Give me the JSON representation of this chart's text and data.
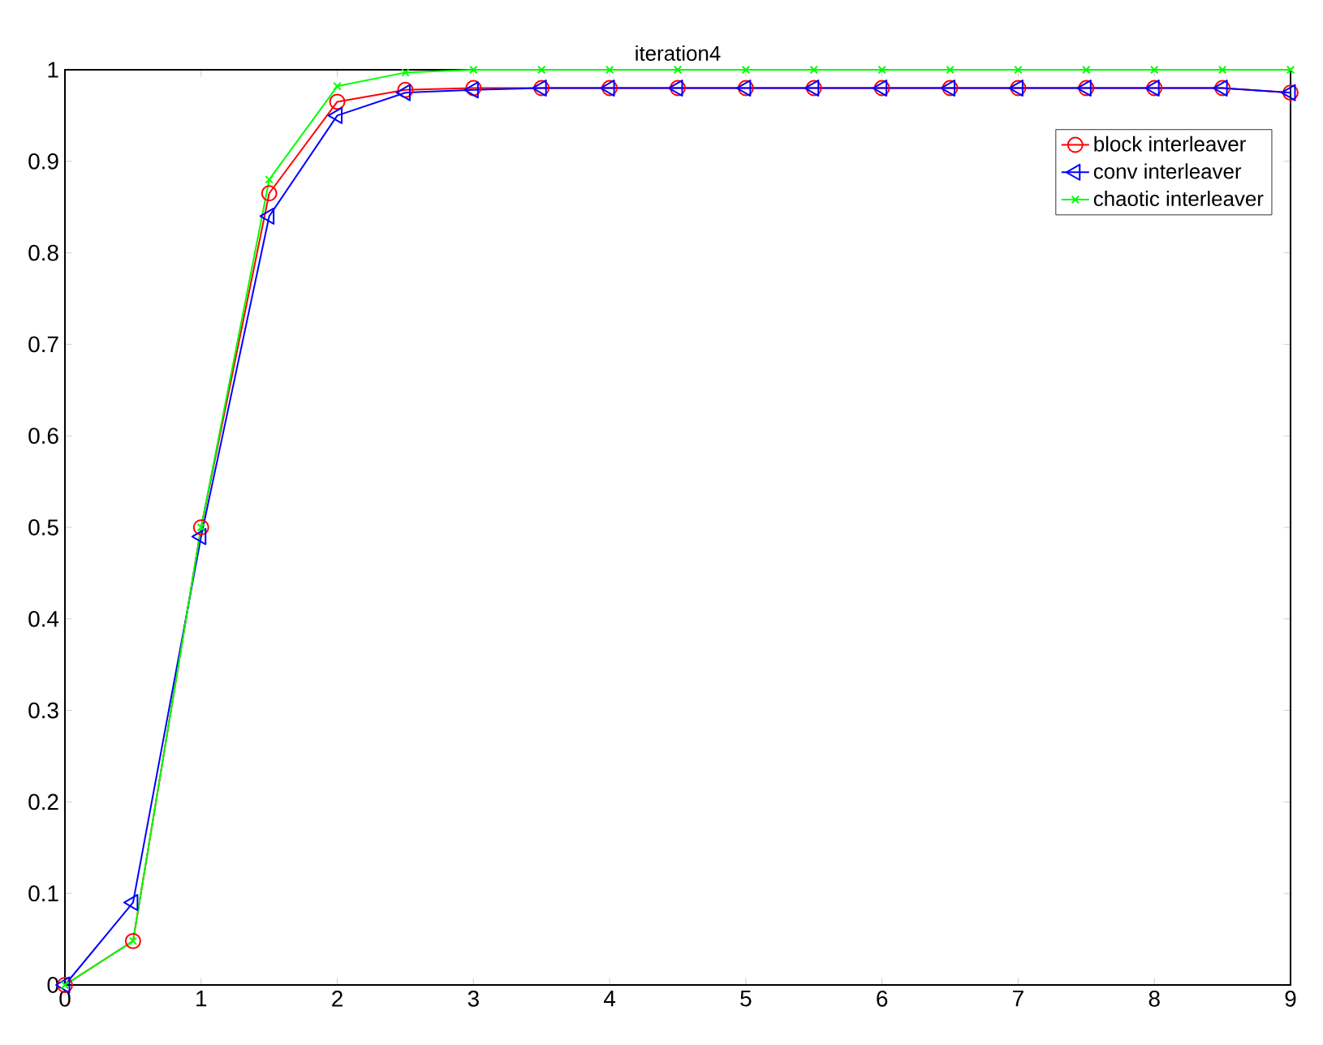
{
  "chart_data": {
    "type": "line",
    "title": "iteration4",
    "x": [
      0,
      0.5,
      1,
      1.5,
      2,
      2.5,
      3,
      3.5,
      4,
      4.5,
      5,
      5.5,
      6,
      6.5,
      7,
      7.5,
      8,
      8.5,
      9
    ],
    "series": [
      {
        "name": "block interleaver",
        "color": "#ff0000",
        "marker": "circle",
        "values": [
          0,
          0.048,
          0.5,
          0.865,
          0.965,
          0.978,
          0.98,
          0.98,
          0.98,
          0.98,
          0.98,
          0.98,
          0.98,
          0.98,
          0.98,
          0.98,
          0.98,
          0.98,
          0.975
        ]
      },
      {
        "name": "conv interleaver",
        "color": "#0000ff",
        "marker": "triangle",
        "values": [
          0,
          0.09,
          0.49,
          0.84,
          0.95,
          0.975,
          0.978,
          0.98,
          0.98,
          0.98,
          0.98,
          0.98,
          0.98,
          0.98,
          0.98,
          0.98,
          0.98,
          0.98,
          0.975
        ]
      },
      {
        "name": "chaotic interleaver",
        "color": "#00ff00",
        "marker": "cross",
        "values": [
          0,
          0.048,
          0.5,
          0.88,
          0.982,
          0.997,
          1,
          1,
          1,
          1,
          1,
          1,
          1,
          1,
          1,
          1,
          1,
          1,
          1
        ]
      }
    ],
    "xlim": [
      0,
      9
    ],
    "ylim": [
      0,
      1
    ],
    "xticks": [
      0,
      1,
      2,
      3,
      4,
      5,
      6,
      7,
      8,
      9
    ],
    "yticks": [
      0,
      0.1,
      0.2,
      0.3,
      0.4,
      0.5,
      0.6,
      0.7,
      0.8,
      0.9,
      1
    ],
    "grid": false,
    "legend": "top right",
    "line_style": "solid"
  }
}
